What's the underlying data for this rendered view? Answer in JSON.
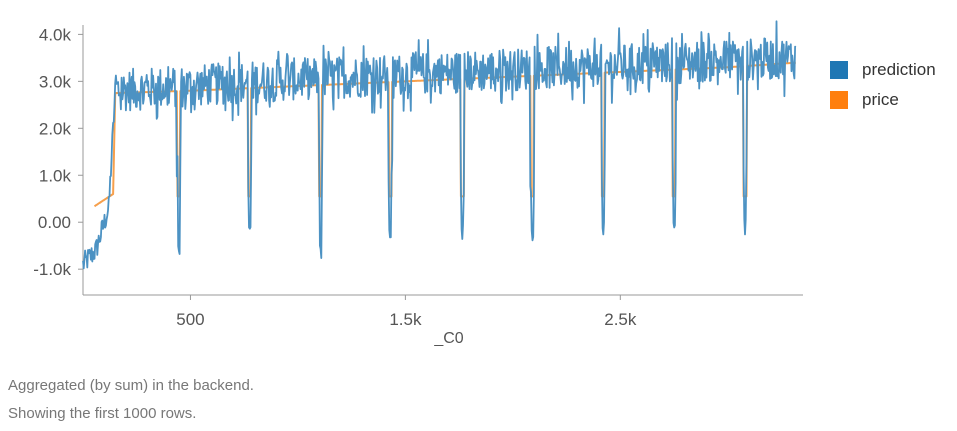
{
  "chart_data": {
    "type": "line",
    "xlabel": "_C0",
    "ylabel": "",
    "xlim": [
      0,
      3350
    ],
    "ylim": [
      -1550,
      4200
    ],
    "x_ticks": [
      {
        "value": 500,
        "label": "500"
      },
      {
        "value": 1500,
        "label": "1.5k"
      },
      {
        "value": 2500,
        "label": "2.5k"
      }
    ],
    "y_ticks": [
      {
        "value": -1000,
        "label": "-1.0k"
      },
      {
        "value": 0,
        "label": "0.00"
      },
      {
        "value": 1000,
        "label": "1.0k"
      },
      {
        "value": 2000,
        "label": "2.0k"
      },
      {
        "value": 3000,
        "label": "3.0k"
      },
      {
        "value": 4000,
        "label": "4.0k"
      }
    ],
    "grid": false,
    "legend_position": "right",
    "n_points": 1000,
    "x_step": 3.33,
    "dip_centers": [
      445,
      775,
      1105,
      1430,
      1765,
      2090,
      2420,
      2750,
      3080
    ],
    "series": [
      {
        "name": "prediction",
        "color": "#4c92c3",
        "description": "noisy series: starts near -800 to 500 for x<150, jumps to ~2800, noisy between ~2200 and ~4000 rising to ~3500 by x=3300, with sharp dips to about -300 to -800 at each dip center",
        "baseline": [
          [
            0,
            -900
          ],
          [
            60,
            -600
          ],
          [
            120,
            300
          ],
          [
            150,
            2800
          ],
          [
            500,
            2900
          ],
          [
            1000,
            3050
          ],
          [
            1500,
            3150
          ],
          [
            2000,
            3250
          ],
          [
            2500,
            3350
          ],
          [
            3000,
            3450
          ],
          [
            3320,
            3500
          ]
        ],
        "noise_amplitude": 450,
        "dip_depth": [
          -800,
          -300,
          -800,
          -400,
          -400,
          -400,
          -400,
          -400,
          -300
        ]
      },
      {
        "name": "price",
        "color": "#f6a04d",
        "description": "smooth series: ~330 at x=50 rising to ~600 at x=150, then ~2750 rising slowly to ~3400 at x=3320, with drops to ~550 at each dip center",
        "baseline": [
          [
            50,
            330
          ],
          [
            140,
            600
          ],
          [
            150,
            2750
          ],
          [
            500,
            2800
          ],
          [
            1000,
            2900
          ],
          [
            1500,
            3000
          ],
          [
            2000,
            3100
          ],
          [
            2500,
            3200
          ],
          [
            3000,
            3300
          ],
          [
            3320,
            3400
          ]
        ],
        "dip_value": 550
      }
    ]
  },
  "legend": {
    "prediction_label": "prediction",
    "price_label": "price",
    "prediction_color": "#1f77b4",
    "price_color": "#ff7f0e"
  },
  "notes": {
    "line1": "Aggregated (by sum) in the backend.",
    "line2": "Showing the first 1000 rows."
  }
}
